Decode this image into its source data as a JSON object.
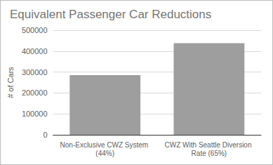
{
  "chart_data": {
    "type": "bar",
    "title": "Equivalent Passenger Car Reductions",
    "y_label": "# of Cars",
    "categories": [
      "Non-Exclusive CWZ System (44%)",
      "CWZ With Seattle Diversion Rate (65%)"
    ],
    "values": [
      285000,
      438000
    ],
    "color": "#9e9e9e",
    "ylim": [
      0,
      500000
    ],
    "yticks": [
      0,
      100000,
      200000,
      300000,
      400000,
      500000
    ],
    "grid": true
  }
}
